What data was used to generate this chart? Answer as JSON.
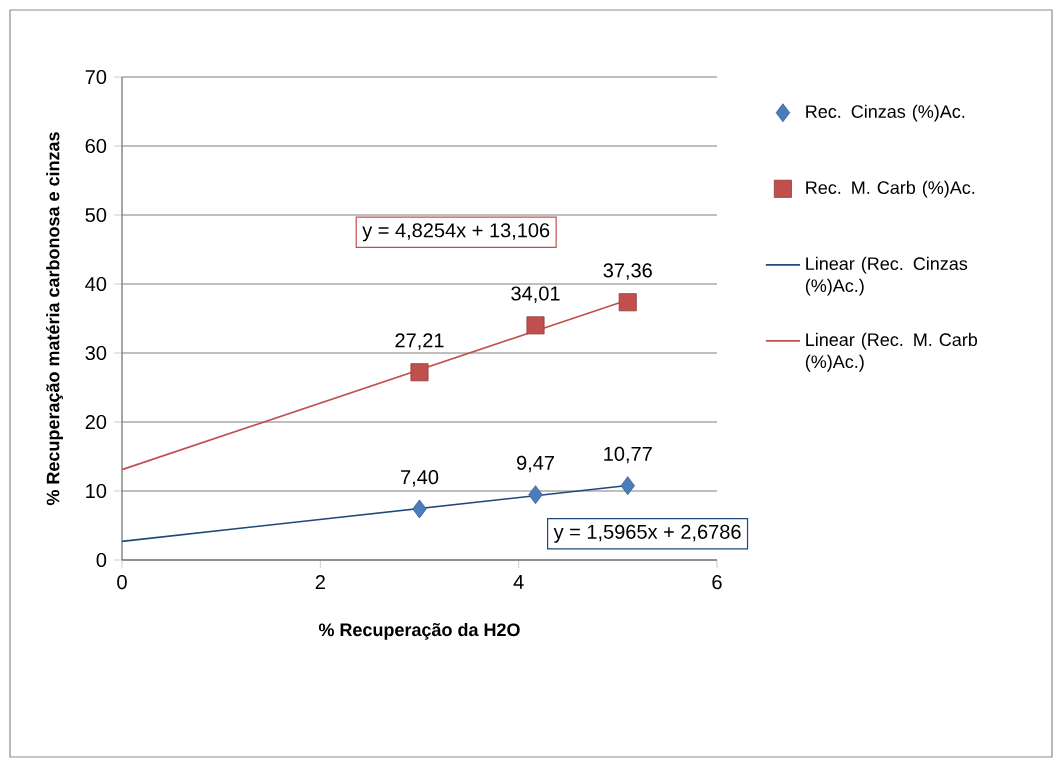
{
  "chart_data": {
    "type": "scatter",
    "xlabel": "% Recuperação da H2O",
    "ylabel": "% Recuperação matéria carbonosa e cinzas",
    "xlim": [
      0,
      6
    ],
    "xticks": [
      0,
      2,
      4,
      6
    ],
    "ylim": [
      0,
      70
    ],
    "yticks": [
      0,
      10,
      20,
      30,
      40,
      50,
      60,
      70
    ],
    "grid": "y",
    "legend": "right",
    "series": [
      {
        "name": "Rec. Cinzas (%)Ac.",
        "marker": "diamond",
        "color": "#4a7ebb",
        "x": [
          3.0,
          4.17,
          5.1
        ],
        "values": [
          7.4,
          9.47,
          10.77
        ],
        "value_labels": [
          "7,40",
          "9,47",
          "10,77"
        ]
      },
      {
        "name": "Rec. M. Carb (%)Ac.",
        "marker": "square",
        "color": "#c0504d",
        "x": [
          3.0,
          4.17,
          5.1
        ],
        "values": [
          27.21,
          34.01,
          37.36
        ],
        "value_labels": [
          "27,21",
          "34,01",
          "37,36"
        ]
      },
      {
        "name": "Linear (Rec. Cinzas (%)Ac.)",
        "type": "line",
        "marker": "none",
        "color": "#1f497d",
        "x": [
          0,
          5.1
        ],
        "values": [
          2.7,
          10.8
        ]
      },
      {
        "name": "Linear (Rec. M. Carb (%)Ac.)",
        "type": "line",
        "marker": "none",
        "color": "#c0504d",
        "x": [
          0,
          5.1
        ],
        "values": [
          13.1,
          37.7
        ]
      }
    ],
    "annotations": [
      "y = 4,8254x + 13,106",
      "y = 1,5965x + 2,6786"
    ]
  }
}
